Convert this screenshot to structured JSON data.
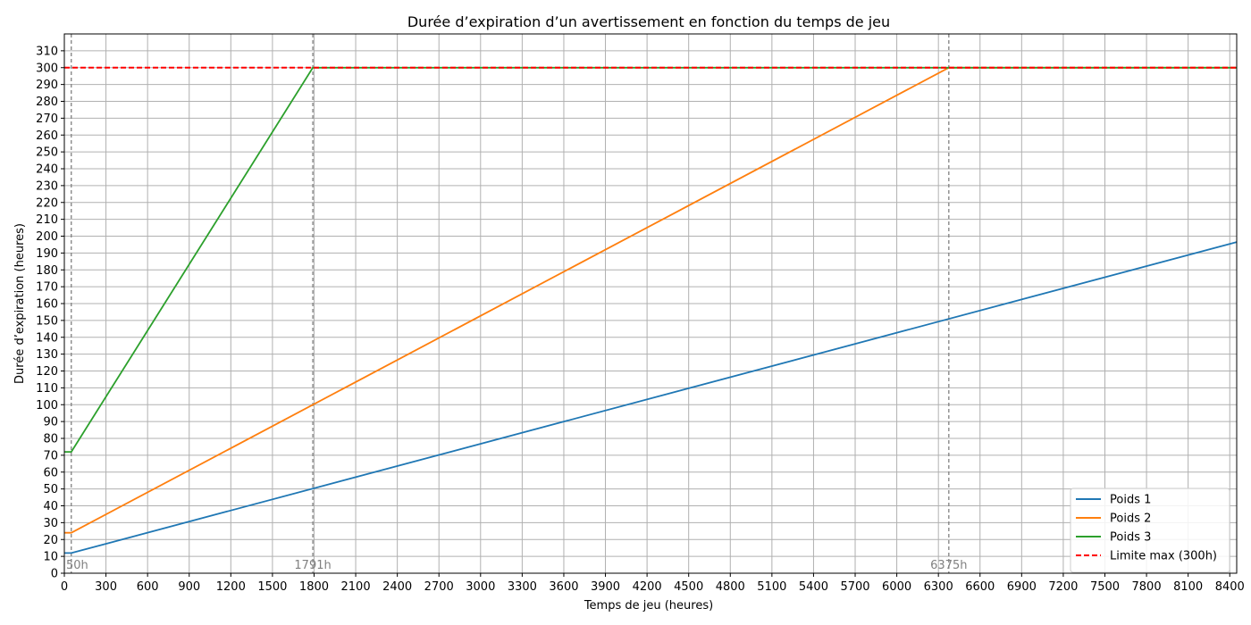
{
  "chart_data": {
    "type": "line",
    "title": "Durée d’expiration d’un avertissement en fonction du temps de jeu",
    "xlabel": "Temps de jeu (heures)",
    "ylabel": "Durée d’expiration (heures)",
    "xlim": [
      0,
      8450
    ],
    "ylim": [
      0,
      320
    ],
    "x_ticks": [
      "0",
      "300",
      "600",
      "900",
      "1200",
      "1500",
      "1800",
      "2100",
      "2400",
      "2700",
      "3000",
      "3300",
      "3600",
      "3900",
      "4200",
      "4500",
      "4800",
      "5100",
      "5400",
      "5700",
      "6000",
      "6300",
      "6600",
      "6900",
      "7200",
      "7500",
      "7800",
      "8100",
      "8400"
    ],
    "y_ticks": [
      "0",
      "10",
      "20",
      "30",
      "40",
      "50",
      "60",
      "70",
      "80",
      "90",
      "100",
      "110",
      "120",
      "130",
      "140",
      "150",
      "160",
      "170",
      "180",
      "190",
      "200",
      "210",
      "220",
      "230",
      "240",
      "250",
      "260",
      "270",
      "280",
      "290",
      "300",
      "310"
    ],
    "grid": true,
    "legend_position": "bottom-right",
    "series": [
      {
        "name": "Poids 1",
        "color": "#1f77b4",
        "style": "solid",
        "points": [
          [
            0,
            12
          ],
          [
            50,
            12
          ],
          [
            8450,
            196.5
          ]
        ]
      },
      {
        "name": "Poids 2",
        "color": "#ff7f0e",
        "style": "solid",
        "points": [
          [
            0,
            24
          ],
          [
            50,
            24
          ],
          [
            6375,
            300
          ],
          [
            8450,
            300
          ]
        ]
      },
      {
        "name": "Poids 3",
        "color": "#2ca02c",
        "style": "solid",
        "points": [
          [
            0,
            72
          ],
          [
            50,
            72
          ],
          [
            1791,
            300
          ],
          [
            8450,
            300
          ]
        ]
      },
      {
        "name": "Limite max (300h)",
        "color": "#ff0000",
        "style": "dashed",
        "points": [
          [
            0,
            300
          ],
          [
            8450,
            300
          ]
        ]
      }
    ],
    "vlines": [
      {
        "x": 50,
        "label": "50h",
        "color": "#808080"
      },
      {
        "x": 1791,
        "label": "1791h",
        "color": "#808080"
      },
      {
        "x": 6375,
        "label": "6375h",
        "color": "#808080"
      }
    ]
  }
}
